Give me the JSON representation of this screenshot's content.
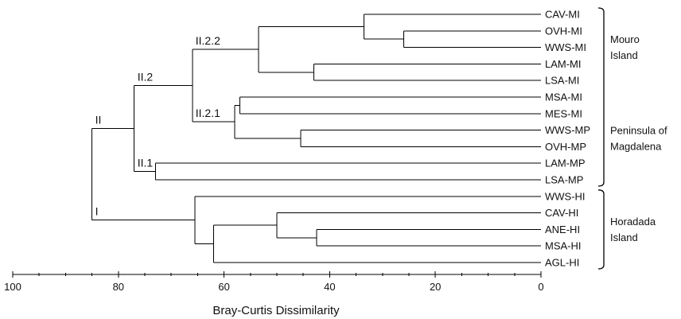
{
  "chart_data": {
    "type": "dendrogram",
    "xlabel": "Bray-Curtis Dissimilarity",
    "xlim": [
      100,
      0
    ],
    "x_ticks": [
      100,
      80,
      60,
      40,
      20,
      0
    ],
    "leaves": [
      "CAV-MI",
      "OVH-MI",
      "WWS-MI",
      "LAM-MI",
      "LSA-MI",
      "MSA-MI",
      "MES-MI",
      "WWS-MP",
      "OVH-MP",
      "LAM-MP",
      "LSA-MP",
      "WWS-HI",
      "CAV-HI",
      "ANE-HI",
      "MSA-HI",
      "AGL-HI"
    ],
    "merges": [
      {
        "children": [
          "OVH-MI",
          "WWS-MI"
        ],
        "height": 26
      },
      {
        "children": [
          "CAV-MI",
          "m0"
        ],
        "height": 33.5
      },
      {
        "children": [
          "LAM-MI",
          "LSA-MI"
        ],
        "height": 43
      },
      {
        "children": [
          "m1",
          "m2"
        ],
        "height": 53.5
      },
      {
        "children": [
          "MSA-MI",
          "MES-MI"
        ],
        "height": 57
      },
      {
        "children": [
          "WWS-MP",
          "OVH-MP"
        ],
        "height": 45.5
      },
      {
        "children": [
          "m4",
          "m5"
        ],
        "height": 58
      },
      {
        "children": [
          "m3",
          "m6"
        ],
        "height": 66,
        "label_above": "II.2.2",
        "label_below": "II.2.1"
      },
      {
        "children": [
          "LAM-MP",
          "LSA-MP"
        ],
        "height": 73
      },
      {
        "children": [
          "m7",
          "m8"
        ],
        "height": 77,
        "label_above": "II.2",
        "label_below": "II.1"
      },
      {
        "children": [
          "ANE-HI",
          "MSA-HI"
        ],
        "height": 42.5
      },
      {
        "children": [
          "CAV-HI",
          "m10"
        ],
        "height": 50
      },
      {
        "children": [
          "m11",
          "AGL-HI"
        ],
        "height": 62
      },
      {
        "children": [
          "WWS-HI",
          "m12"
        ],
        "height": 65.5
      },
      {
        "children": [
          "m9",
          "m13"
        ],
        "height": 85,
        "label_above": "II",
        "label_below": "I"
      }
    ],
    "groups": [
      {
        "label_lines": [
          "Mouro",
          "Island"
        ],
        "from": "CAV-MI",
        "to": "LSA-MI"
      },
      {
        "label_lines": [
          "Peninsula of",
          "Magdalena"
        ],
        "from": "MSA-MI",
        "to": "LSA-MP"
      },
      {
        "label_lines": [
          "Horadada",
          "Island"
        ],
        "from": "WWS-HI",
        "to": "AGL-HI"
      }
    ],
    "bracket_spans": [
      [
        "CAV-MI",
        "LSA-MP"
      ],
      [
        "WWS-HI",
        "AGL-HI"
      ]
    ]
  }
}
